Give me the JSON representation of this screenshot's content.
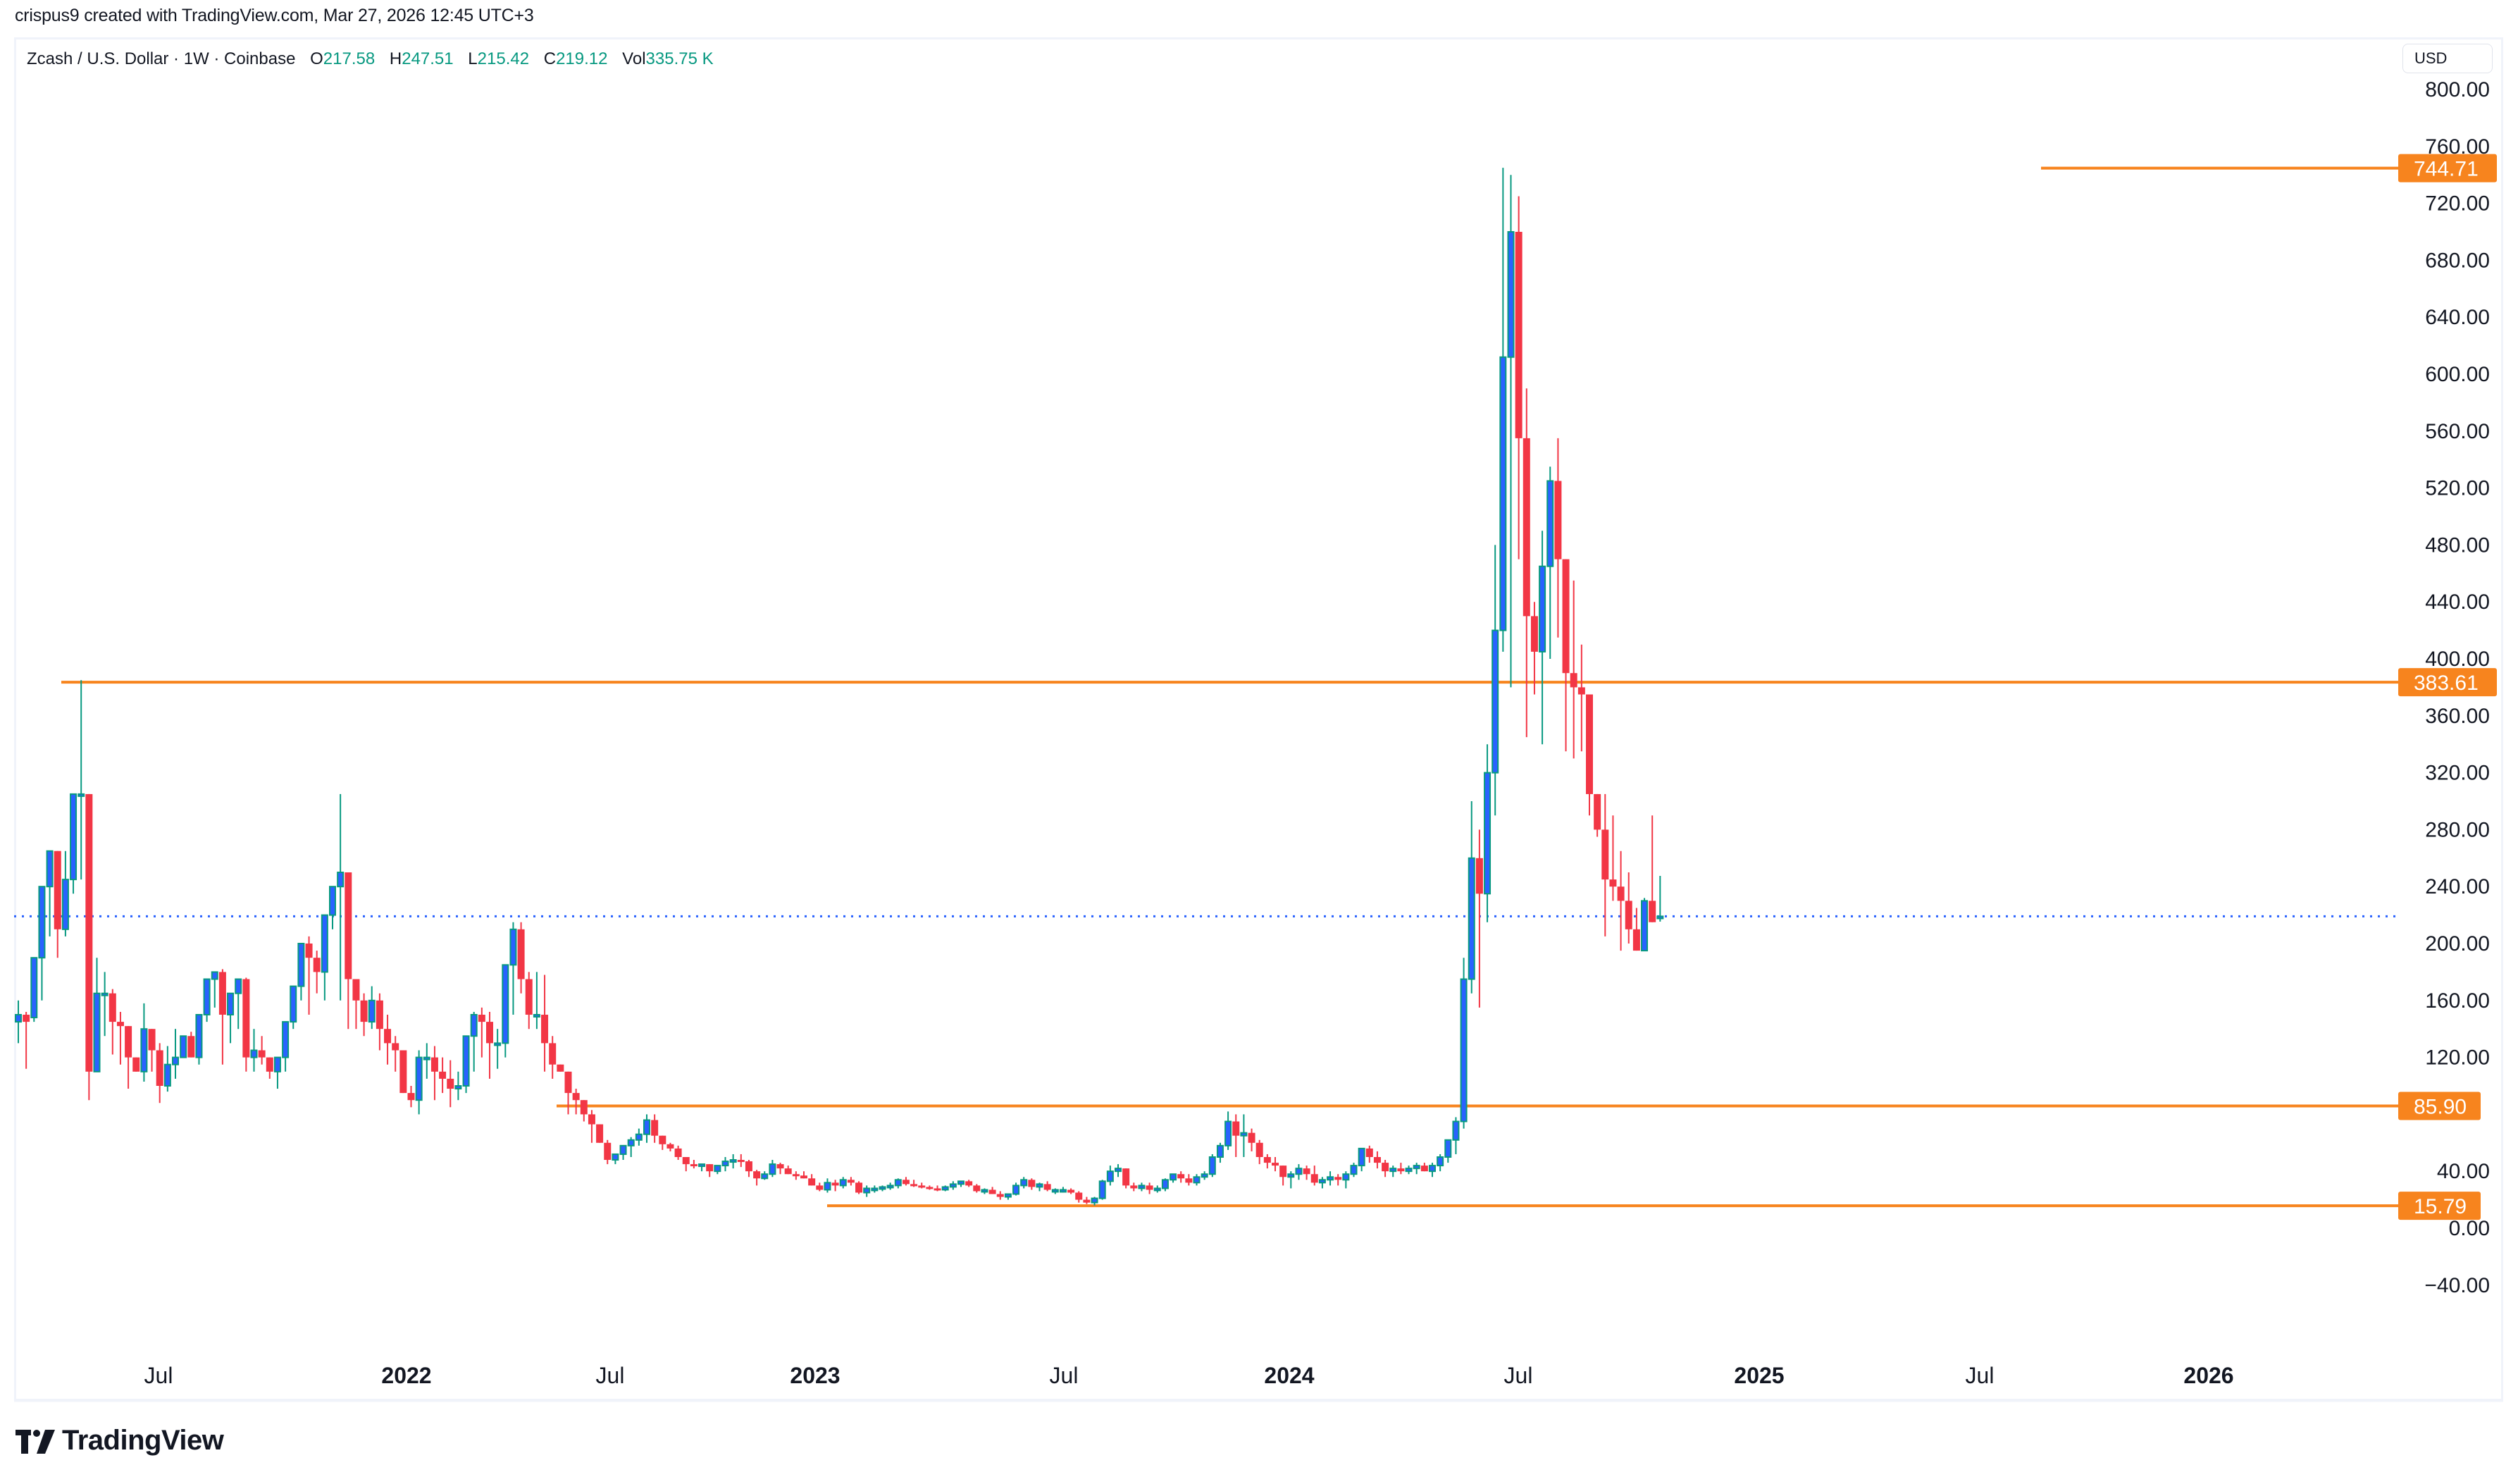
{
  "header": {
    "credit": "crispus9 created with TradingView.com, Mar 27, 2026 12:45 UTC+3"
  },
  "legend": {
    "symbol": "Zcash / U.S. Dollar · 1W · Coinbase",
    "open_label": "O",
    "open": "217.58",
    "high_label": "H",
    "high": "247.51",
    "low_label": "L",
    "low": "215.42",
    "close_label": "C",
    "close": "219.12",
    "volume_label": "Vol",
    "volume": "335.75 K"
  },
  "currency_button": "USD",
  "logo_text": "TradingView",
  "colors": {
    "up_fill": "#2962ff",
    "up_border": "#089981",
    "down": "#f23645",
    "level_line": "#f7841e",
    "last_price_line": "#2962ff",
    "axis_text": "#131722"
  },
  "chart_data": {
    "type": "candlestick",
    "title": "Zcash / U.S. Dollar · 1W · Coinbase",
    "xlabel": "",
    "ylabel": "USD",
    "ylim": [
      -60,
      810
    ],
    "grid": false,
    "y_ticks": [
      "800.00",
      "760.00",
      "720.00",
      "680.00",
      "640.00",
      "600.00",
      "560.00",
      "520.00",
      "480.00",
      "440.00",
      "400.00",
      "360.00",
      "320.00",
      "280.00",
      "240.00",
      "200.00",
      "160.00",
      "120.00",
      "40.00",
      "0.00",
      "−40.00"
    ],
    "x_ticks": [
      {
        "label": "Jul",
        "year": false,
        "x": 225
      },
      {
        "label": "2022",
        "year": true,
        "x": 577
      },
      {
        "label": "Jul",
        "year": false,
        "x": 866
      },
      {
        "label": "2023",
        "year": true,
        "x": 1157
      },
      {
        "label": "Jul",
        "year": false,
        "x": 1510
      },
      {
        "label": "2024",
        "year": true,
        "x": 1830
      },
      {
        "label": "Jul",
        "year": false,
        "x": 2155
      },
      {
        "label": "2025",
        "year": true,
        "x": 2497
      },
      {
        "label": "Jul",
        "year": false,
        "x": 2810
      },
      {
        "label": "2026",
        "year": true,
        "x": 3135
      }
    ],
    "horizontal_levels": [
      {
        "value": 744.71,
        "label": "744.71",
        "x_start": 2897
      },
      {
        "value": 383.61,
        "label": "383.61",
        "x_start": 87
      },
      {
        "value": 85.9,
        "label": "85.90",
        "x_start": 790
      },
      {
        "value": 15.79,
        "label": "15.79",
        "x_start": 1174
      }
    ],
    "last_price": 219.12,
    "candle_start_x": 26,
    "candle_spacing": 11.15,
    "candles_ohlc": [
      [
        145,
        160,
        130,
        150
      ],
      [
        150,
        152,
        112,
        145
      ],
      [
        148,
        190,
        145,
        190
      ],
      [
        190,
        240,
        160,
        240
      ],
      [
        240,
        265,
        205,
        265
      ],
      [
        265,
        245,
        190,
        210
      ],
      [
        210,
        265,
        205,
        245
      ],
      [
        245,
        300,
        235,
        305
      ],
      [
        305,
        385,
        245,
        305
      ],
      [
        305,
        305,
        90,
        110
      ],
      [
        110,
        190,
        110,
        165
      ],
      [
        165,
        180,
        135,
        165
      ],
      [
        165,
        168,
        122,
        145
      ],
      [
        145,
        152,
        115,
        142
      ],
      [
        142,
        140,
        98,
        120
      ],
      [
        120,
        120,
        115,
        110
      ],
      [
        110,
        158,
        103,
        140
      ],
      [
        140,
        125,
        110,
        125
      ],
      [
        125,
        130,
        88,
        100
      ],
      [
        100,
        128,
        96,
        115
      ],
      [
        115,
        140,
        105,
        120
      ],
      [
        120,
        135,
        120,
        135
      ],
      [
        135,
        138,
        120,
        120
      ],
      [
        120,
        150,
        115,
        150
      ],
      [
        150,
        175,
        145,
        175
      ],
      [
        175,
        180,
        155,
        180
      ],
      [
        180,
        182,
        115,
        150
      ],
      [
        150,
        165,
        130,
        165
      ],
      [
        165,
        175,
        140,
        175
      ],
      [
        175,
        176,
        110,
        120
      ],
      [
        120,
        140,
        110,
        125
      ],
      [
        125,
        135,
        115,
        120
      ],
      [
        120,
        115,
        105,
        110
      ],
      [
        110,
        120,
        98,
        120
      ],
      [
        120,
        140,
        110,
        145
      ],
      [
        145,
        170,
        140,
        170
      ],
      [
        170,
        200,
        160,
        200
      ],
      [
        200,
        205,
        150,
        190
      ],
      [
        190,
        195,
        165,
        180
      ],
      [
        180,
        200,
        160,
        220
      ],
      [
        220,
        238,
        210,
        240
      ],
      [
        240,
        305,
        160,
        250
      ],
      [
        250,
        230,
        140,
        175
      ],
      [
        175,
        170,
        140,
        160
      ],
      [
        160,
        165,
        135,
        145
      ],
      [
        145,
        170,
        140,
        160
      ],
      [
        160,
        165,
        125,
        140
      ],
      [
        140,
        150,
        115,
        130
      ],
      [
        130,
        135,
        110,
        125
      ],
      [
        125,
        125,
        95,
        95
      ],
      [
        95,
        100,
        85,
        90
      ],
      [
        90,
        125,
        80,
        120
      ],
      [
        120,
        130,
        105,
        120
      ],
      [
        120,
        128,
        90,
        110
      ],
      [
        110,
        120,
        95,
        105
      ],
      [
        105,
        118,
        85,
        98
      ],
      [
        98,
        110,
        90,
        100
      ],
      [
        100,
        135,
        95,
        135
      ],
      [
        135,
        152,
        110,
        150
      ],
      [
        150,
        155,
        120,
        145
      ],
      [
        145,
        152,
        105,
        130
      ],
      [
        130,
        140,
        112,
        130
      ],
      [
        130,
        185,
        120,
        185
      ],
      [
        185,
        215,
        150,
        210
      ],
      [
        210,
        215,
        165,
        175
      ],
      [
        175,
        180,
        140,
        150
      ],
      [
        150,
        180,
        140,
        150
      ],
      [
        150,
        178,
        110,
        130
      ],
      [
        130,
        135,
        105,
        115
      ],
      [
        115,
        115,
        110,
        110
      ],
      [
        110,
        110,
        80,
        95
      ],
      [
        95,
        98,
        80,
        90
      ],
      [
        90,
        90,
        75,
        80
      ],
      [
        80,
        83,
        60,
        73
      ],
      [
        73,
        70,
        60,
        60
      ],
      [
        60,
        62,
        45,
        48
      ],
      [
        48,
        52,
        45,
        52
      ],
      [
        52,
        56,
        48,
        58
      ],
      [
        58,
        64,
        50,
        62
      ],
      [
        62,
        70,
        58,
        66
      ],
      [
        66,
        80,
        60,
        76
      ],
      [
        76,
        80,
        60,
        65
      ],
      [
        65,
        60,
        55,
        59
      ],
      [
        59,
        60,
        54,
        56
      ],
      [
        56,
        58,
        48,
        50
      ],
      [
        50,
        50,
        40,
        45
      ],
      [
        45,
        48,
        42,
        44
      ],
      [
        44,
        45,
        40,
        45
      ],
      [
        45,
        45,
        36,
        40
      ],
      [
        40,
        44,
        38,
        44
      ],
      [
        44,
        50,
        40,
        47
      ],
      [
        47,
        52,
        42,
        48
      ],
      [
        48,
        52,
        43,
        47
      ],
      [
        47,
        48,
        36,
        40
      ],
      [
        40,
        41,
        30,
        35
      ],
      [
        35,
        40,
        34,
        38
      ],
      [
        38,
        48,
        36,
        45
      ],
      [
        45,
        46,
        38,
        42
      ],
      [
        42,
        44,
        38,
        38
      ],
      [
        38,
        40,
        34,
        37
      ],
      [
        37,
        40,
        36,
        35
      ],
      [
        35,
        38,
        30,
        30
      ],
      [
        30,
        32,
        26,
        27
      ],
      [
        27,
        35,
        25,
        32
      ],
      [
        32,
        34,
        26,
        30
      ],
      [
        30,
        36,
        28,
        34
      ],
      [
        34,
        36,
        30,
        32
      ],
      [
        32,
        33,
        24,
        25
      ],
      [
        25,
        30,
        22,
        28
      ],
      [
        28,
        30,
        25,
        28
      ],
      [
        28,
        30,
        26,
        29
      ],
      [
        29,
        32,
        27,
        30
      ],
      [
        30,
        35,
        28,
        34
      ],
      [
        34,
        36,
        30,
        31
      ],
      [
        31,
        34,
        29,
        30
      ],
      [
        30,
        32,
        28,
        29
      ],
      [
        29,
        30,
        27,
        28
      ],
      [
        28,
        30,
        26,
        27
      ],
      [
        27,
        30,
        26,
        29
      ],
      [
        29,
        33,
        27,
        31
      ],
      [
        31,
        33,
        29,
        33
      ],
      [
        33,
        34,
        29,
        30
      ],
      [
        30,
        31,
        25,
        26
      ],
      [
        26,
        28,
        24,
        27
      ],
      [
        27,
        29,
        25,
        24
      ],
      [
        24,
        26,
        20,
        22
      ],
      [
        22,
        24,
        20,
        24
      ],
      [
        24,
        32,
        23,
        30
      ],
      [
        30,
        36,
        28,
        34
      ],
      [
        34,
        35,
        27,
        29
      ],
      [
        29,
        32,
        26,
        31
      ],
      [
        31,
        33,
        26,
        27
      ],
      [
        27,
        28,
        24,
        27
      ],
      [
        27,
        29,
        25,
        27
      ],
      [
        27,
        28,
        24,
        25
      ],
      [
        25,
        26,
        18,
        20
      ],
      [
        20,
        22,
        17,
        18
      ],
      [
        18,
        22,
        16,
        21
      ],
      [
        21,
        34,
        20,
        33
      ],
      [
        33,
        44,
        30,
        40
      ],
      [
        40,
        45,
        36,
        42
      ],
      [
        42,
        42,
        28,
        30
      ],
      [
        30,
        32,
        26,
        28
      ],
      [
        28,
        32,
        26,
        30
      ],
      [
        30,
        32,
        24,
        27
      ],
      [
        27,
        30,
        25,
        28
      ],
      [
        28,
        35,
        26,
        34
      ],
      [
        34,
        38,
        32,
        38
      ],
      [
        38,
        40,
        32,
        35
      ],
      [
        35,
        38,
        30,
        32
      ],
      [
        32,
        38,
        30,
        36
      ],
      [
        36,
        40,
        34,
        38
      ],
      [
        38,
        52,
        36,
        50
      ],
      [
        50,
        60,
        46,
        58
      ],
      [
        58,
        82,
        55,
        75
      ],
      [
        75,
        80,
        50,
        65
      ],
      [
        65,
        80,
        50,
        67
      ],
      [
        67,
        70,
        54,
        60
      ],
      [
        60,
        62,
        45,
        50
      ],
      [
        50,
        52,
        42,
        46
      ],
      [
        46,
        50,
        40,
        44
      ],
      [
        44,
        44,
        30,
        36
      ],
      [
        36,
        40,
        28,
        38
      ],
      [
        38,
        45,
        34,
        42
      ],
      [
        42,
        44,
        34,
        38
      ],
      [
        38,
        44,
        30,
        32
      ],
      [
        32,
        36,
        28,
        34
      ],
      [
        34,
        40,
        30,
        36
      ],
      [
        36,
        38,
        30,
        34
      ],
      [
        34,
        40,
        28,
        38
      ],
      [
        38,
        46,
        36,
        44
      ],
      [
        44,
        52,
        40,
        56
      ],
      [
        56,
        58,
        46,
        50
      ],
      [
        50,
        54,
        42,
        46
      ],
      [
        46,
        48,
        36,
        40
      ],
      [
        40,
        44,
        36,
        42
      ],
      [
        42,
        46,
        38,
        40
      ],
      [
        40,
        44,
        38,
        42
      ],
      [
        42,
        46,
        38,
        44
      ],
      [
        44,
        46,
        40,
        40
      ],
      [
        40,
        46,
        36,
        44
      ],
      [
        44,
        52,
        40,
        50
      ],
      [
        50,
        60,
        46,
        62
      ],
      [
        62,
        78,
        52,
        75
      ],
      [
        75,
        190,
        70,
        175
      ],
      [
        175,
        300,
        165,
        260
      ],
      [
        260,
        280,
        155,
        235
      ],
      [
        235,
        340,
        215,
        320
      ],
      [
        320,
        480,
        290,
        420
      ],
      [
        420,
        745,
        405,
        612
      ],
      [
        612,
        740,
        380,
        700
      ],
      [
        700,
        725,
        470,
        555
      ],
      [
        555,
        590,
        345,
        430
      ],
      [
        430,
        440,
        375,
        405
      ],
      [
        405,
        490,
        340,
        465
      ],
      [
        465,
        535,
        400,
        525
      ],
      [
        525,
        555,
        415,
        470
      ],
      [
        470,
        455,
        335,
        390
      ],
      [
        390,
        455,
        330,
        380
      ],
      [
        380,
        410,
        335,
        375
      ],
      [
        375,
        310,
        290,
        305
      ],
      [
        305,
        280,
        275,
        280
      ],
      [
        280,
        305,
        205,
        245
      ],
      [
        245,
        290,
        230,
        240
      ],
      [
        240,
        265,
        195,
        230
      ],
      [
        230,
        250,
        200,
        210
      ],
      [
        210,
        225,
        195,
        195
      ],
      [
        195,
        232,
        195,
        230
      ],
      [
        230,
        290,
        215,
        215
      ],
      [
        217.58,
        247.51,
        215.42,
        219.12
      ]
    ]
  }
}
